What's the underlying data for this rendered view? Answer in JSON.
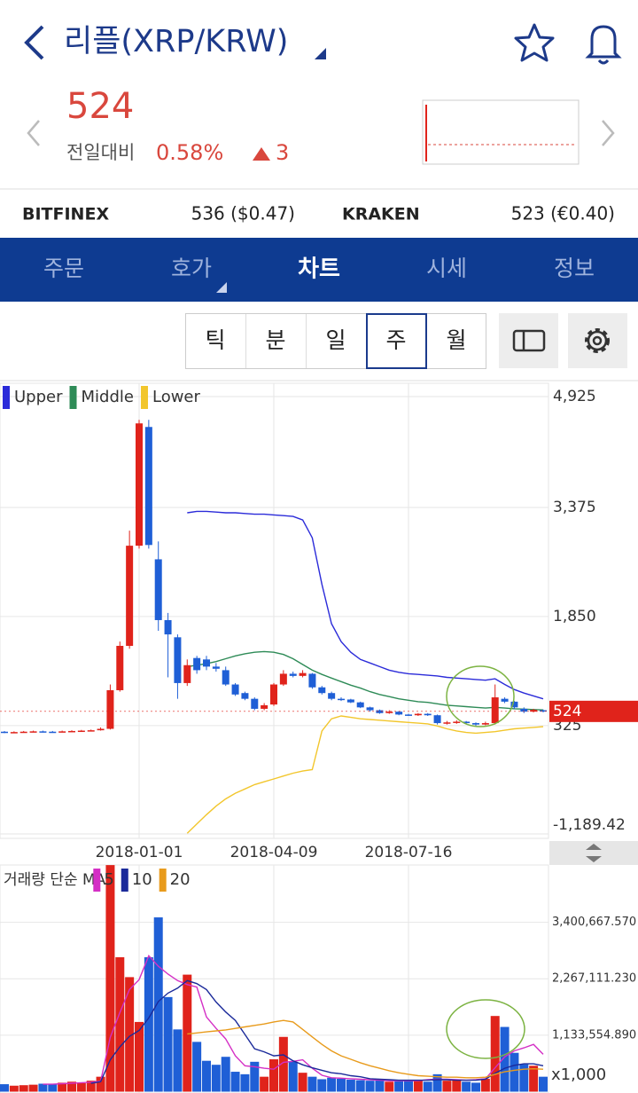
{
  "header": {
    "title": "리플(XRP/KRW)"
  },
  "price": {
    "value": "524",
    "change_label": "전일대비",
    "change_pct": "0.58%",
    "change_abs": "3"
  },
  "exchanges": [
    {
      "name": "BITFINEX",
      "price": "536 ($0.47)"
    },
    {
      "name": "KRAKEN",
      "price": "523 (€0.40)"
    }
  ],
  "tabs": [
    "주문",
    "호가",
    "차트",
    "시세",
    "정보"
  ],
  "periods": [
    "틱",
    "분",
    "일",
    "주",
    "월"
  ],
  "chart_data": [
    {
      "type": "candlestick",
      "categories": [
        null,
        null,
        null,
        null,
        null,
        null,
        null,
        null,
        null,
        null,
        null,
        null,
        null,
        null,
        "2018-01-01",
        null,
        null,
        null,
        null,
        null,
        null,
        null,
        null,
        null,
        null,
        null,
        null,
        null,
        "2018-04-09",
        null,
        null,
        null,
        null,
        null,
        null,
        null,
        null,
        null,
        null,
        null,
        null,
        null,
        "2018-07-16",
        null,
        null,
        null,
        null,
        null,
        null,
        null,
        null,
        null,
        null,
        null,
        null,
        null,
        null
      ],
      "open": [
        240,
        230,
        235,
        240,
        245,
        240,
        235,
        245,
        250,
        255,
        260,
        280,
        820,
        1440,
        2840,
        4500,
        2650,
        1800,
        1560,
        920,
        1270,
        1250,
        1150,
        1100,
        900,
        780,
        700,
        560,
        620,
        900,
        1050,
        1020,
        1050,
        860,
        780,
        700,
        690,
        650,
        580,
        540,
        500,
        520,
        480,
        470,
        490,
        470,
        360,
        370,
        380,
        360,
        340,
        360,
        700,
        660,
        560,
        520,
        540
      ],
      "high": [
        250,
        245,
        250,
        255,
        255,
        250,
        255,
        260,
        265,
        270,
        300,
        900,
        1500,
        3050,
        4600,
        4600,
        2900,
        1900,
        1600,
        1250,
        1300,
        1300,
        1200,
        1150,
        920,
        800,
        720,
        640,
        920,
        1100,
        1080,
        1100,
        1060,
        880,
        800,
        720,
        700,
        660,
        590,
        550,
        540,
        530,
        490,
        500,
        500,
        480,
        390,
        400,
        390,
        370,
        380,
        900,
        720,
        670,
        580,
        560,
        550
      ],
      "low": [
        220,
        225,
        230,
        235,
        230,
        225,
        230,
        240,
        245,
        250,
        255,
        270,
        800,
        1400,
        2800,
        2800,
        1650,
        1000,
        700,
        880,
        1050,
        1100,
        1080,
        880,
        740,
        680,
        540,
        540,
        600,
        880,
        1000,
        1000,
        840,
        760,
        680,
        670,
        640,
        570,
        520,
        490,
        490,
        470,
        460,
        460,
        460,
        340,
        340,
        350,
        350,
        320,
        330,
        340,
        640,
        560,
        500,
        510,
        510
      ],
      "close": [
        230,
        235,
        240,
        245,
        240,
        235,
        245,
        250,
        255,
        260,
        280,
        820,
        1440,
        2840,
        4550,
        2850,
        1800,
        1600,
        920,
        1170,
        1100,
        1150,
        1120,
        900,
        760,
        700,
        560,
        610,
        900,
        1050,
        1020,
        1060,
        860,
        780,
        700,
        690,
        650,
        580,
        540,
        500,
        520,
        480,
        470,
        490,
        470,
        360,
        370,
        380,
        360,
        340,
        360,
        720,
        660,
        580,
        520,
        545,
        524
      ],
      "up_color": "#e0231b",
      "down_color": "#1f5fd6",
      "series": [
        {
          "name": "Upper",
          "color": "#2b2bd9",
          "values": [
            null,
            null,
            null,
            null,
            null,
            null,
            null,
            null,
            null,
            null,
            null,
            null,
            null,
            null,
            null,
            null,
            null,
            null,
            null,
            3300,
            3320,
            3320,
            3310,
            3300,
            3300,
            3290,
            3280,
            3280,
            3270,
            3260,
            3250,
            3200,
            2950,
            2300,
            1750,
            1500,
            1350,
            1250,
            1200,
            1150,
            1100,
            1070,
            1050,
            1040,
            1030,
            1020,
            1000,
            990,
            980,
            970,
            960,
            980,
            900,
            830,
            780,
            740,
            700
          ]
        },
        {
          "name": "Middle",
          "color": "#2e8b57",
          "values": [
            null,
            null,
            null,
            null,
            null,
            null,
            null,
            null,
            null,
            null,
            null,
            null,
            null,
            null,
            null,
            null,
            null,
            null,
            null,
            1150,
            1170,
            1190,
            1220,
            1260,
            1300,
            1330,
            1350,
            1360,
            1350,
            1320,
            1260,
            1180,
            1100,
            1040,
            990,
            940,
            890,
            850,
            800,
            760,
            730,
            700,
            680,
            660,
            650,
            630,
            610,
            600,
            590,
            580,
            570,
            580,
            570,
            560,
            555,
            550,
            545
          ]
        },
        {
          "name": "Lower",
          "color": "#f2c62c",
          "values": [
            null,
            null,
            null,
            null,
            null,
            null,
            null,
            null,
            null,
            null,
            null,
            null,
            null,
            null,
            null,
            null,
            null,
            null,
            null,
            -1180,
            -1050,
            -920,
            -800,
            -700,
            -620,
            -560,
            -500,
            -460,
            -420,
            -380,
            -340,
            -310,
            -290,
            250,
            420,
            460,
            440,
            420,
            410,
            400,
            390,
            380,
            370,
            360,
            350,
            320,
            280,
            250,
            230,
            220,
            230,
            240,
            260,
            280,
            290,
            300,
            310
          ]
        }
      ],
      "last_price": 524,
      "ylim": [
        -1189.42,
        4925
      ],
      "yticks": [
        {
          "value": 4925,
          "label": "4,925"
        },
        {
          "value": 3375,
          "label": "3,375"
        },
        {
          "value": 1850,
          "label": "1,850"
        },
        325,
        {
          "value": -1189.42,
          "label": "-1,189.42"
        }
      ],
      "grid": true
    },
    {
      "type": "bar",
      "legend_title": "거래량 단순 MA",
      "unit_label": "x1,000",
      "up_color": "#e0231b",
      "down_color": "#1f5fd6",
      "values": [
        150000,
        120000,
        130000,
        140000,
        160000,
        150000,
        180000,
        200000,
        170000,
        220000,
        300000,
        4550000,
        2700000,
        2300000,
        1400000,
        2700000,
        3500000,
        1900000,
        1250000,
        2350000,
        1000000,
        620000,
        540000,
        700000,
        400000,
        350000,
        600000,
        300000,
        650000,
        1100000,
        600000,
        380000,
        300000,
        250000,
        280000,
        260000,
        240000,
        230000,
        220000,
        250000,
        200000,
        210000,
        230000,
        220000,
        200000,
        350000,
        220000,
        250000,
        200000,
        180000,
        260000,
        1520000,
        1300000,
        780000,
        550000,
        520000,
        300000
      ],
      "series": [
        {
          "name": "5",
          "color": "#d42fc5",
          "values": [
            null,
            null,
            null,
            null,
            150000,
            150000,
            160000,
            170000,
            180000,
            190000,
            210000,
            1090000,
            1590000,
            2050000,
            2250000,
            2730000,
            2520000,
            2360000,
            2230000,
            2150000,
            2100000,
            1500000,
            1270000,
            1060000,
            720000,
            520000,
            500000,
            470000,
            450000,
            590000,
            610000,
            640000,
            470000,
            330000,
            280000,
            270000,
            260000,
            250000,
            240000,
            230000,
            220000,
            220000,
            220000,
            220000,
            240000,
            250000,
            250000,
            240000,
            230000,
            240000,
            260000,
            480000,
            700000,
            820000,
            880000,
            950000,
            750000
          ]
        },
        {
          "name": "10",
          "color": "#1b2a9a",
          "values": [
            null,
            null,
            null,
            null,
            null,
            null,
            null,
            null,
            null,
            170000,
            200000,
            640000,
            900000,
            1110000,
            1230000,
            1480000,
            1810000,
            1980000,
            2080000,
            2230000,
            2170000,
            2050000,
            1800000,
            1600000,
            1430000,
            1150000,
            860000,
            800000,
            720000,
            740000,
            620000,
            540000,
            480000,
            430000,
            380000,
            360000,
            320000,
            300000,
            260000,
            250000,
            240000,
            230000,
            230000,
            230000,
            230000,
            240000,
            240000,
            230000,
            230000,
            230000,
            250000,
            370000,
            470000,
            530000,
            560000,
            560000,
            520000
          ]
        },
        {
          "name": "20",
          "color": "#e89b1c",
          "values": [
            null,
            null,
            null,
            null,
            null,
            null,
            null,
            null,
            null,
            null,
            null,
            null,
            null,
            null,
            null,
            null,
            null,
            null,
            null,
            1160000,
            1180000,
            1200000,
            1220000,
            1240000,
            1270000,
            1300000,
            1330000,
            1360000,
            1400000,
            1430000,
            1400000,
            1250000,
            1100000,
            950000,
            820000,
            720000,
            650000,
            580000,
            520000,
            470000,
            420000,
            380000,
            350000,
            320000,
            310000,
            300000,
            290000,
            290000,
            280000,
            280000,
            290000,
            350000,
            400000,
            430000,
            450000,
            460000,
            450000
          ]
        }
      ],
      "ylim": [
        0,
        4552000
      ],
      "yticks": [
        {
          "value": 3400667.57,
          "label": "3,400,667.570"
        },
        {
          "value": 2267111.23,
          "label": "2,267,111.230"
        },
        {
          "value": 1133554.89,
          "label": "1,133,554.890"
        }
      ],
      "grid": true
    }
  ]
}
